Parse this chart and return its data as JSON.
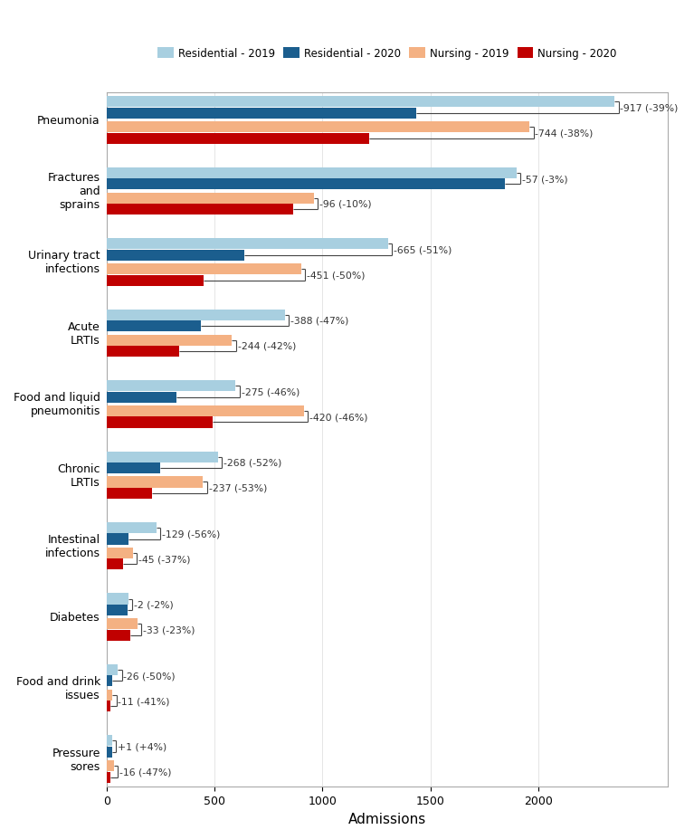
{
  "categories": [
    "Pneumonia",
    "Fractures\nand\nsprains",
    "Urinary tract\ninfections",
    "Acute\nLRTIs",
    "Food and liquid\npneumonitis",
    "Chronic\nLRTIs",
    "Intestinal\ninfections",
    "Diabetes",
    "Food and drink\nissues",
    "Pressure\nsores"
  ],
  "res_2019": [
    2353,
    1900,
    1304,
    825,
    598,
    515,
    230,
    100,
    52,
    25
  ],
  "res_2020": [
    1436,
    1843,
    639,
    437,
    323,
    247,
    101,
    98,
    26,
    26
  ],
  "nur_2019": [
    1959,
    960,
    902,
    581,
    913,
    447,
    122,
    143,
    27,
    34
  ],
  "nur_2020": [
    1215,
    864,
    451,
    337,
    493,
    210,
    77,
    110,
    16,
    18
  ],
  "res_diff_label": [
    "-917 (-39%)",
    "-57 (-3%)",
    "-665 (-51%)",
    "-388 (-47%)",
    "-275 (-46%)",
    "-268 (-52%)",
    "-129 (-56%)",
    "-2 (-2%)",
    "-26 (-50%)",
    "+1 (+4%)"
  ],
  "nur_diff_label": [
    "-744 (-38%)",
    "-96 (-10%)",
    "-451 (-50%)",
    "-244 (-42%)",
    "-420 (-46%)",
    "-237 (-53%)",
    "-45 (-37%)",
    "-33 (-23%)",
    "-11 (-41%)",
    "-16 (-47%)"
  ],
  "colors": {
    "res_2019": "#a8cfe0",
    "res_2020": "#1b5e8e",
    "nur_2019": "#f4b183",
    "nur_2020": "#c00000"
  },
  "legend_labels": [
    "Residential - 2019",
    "Residential - 2020",
    "Nursing - 2019",
    "Nursing - 2020"
  ],
  "xlabel": "Admissions",
  "xlim": [
    0,
    2600
  ],
  "xticks": [
    0,
    500,
    1000,
    1500,
    2000
  ],
  "background_color": "#ffffff",
  "annotation_fontsize": 7.8,
  "axis_label_fontsize": 9,
  "xlabel_fontsize": 11
}
